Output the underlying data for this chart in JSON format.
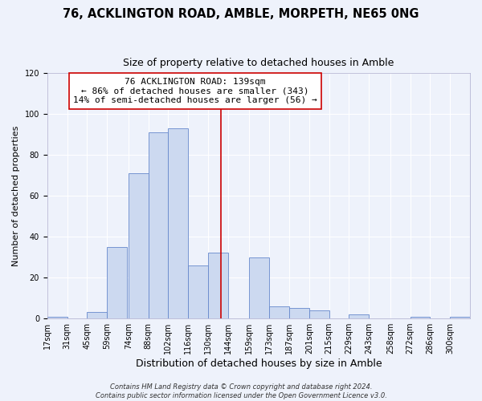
{
  "title": "76, ACKLINGTON ROAD, AMBLE, MORPETH, NE65 0NG",
  "subtitle": "Size of property relative to detached houses in Amble",
  "xlabel": "Distribution of detached houses by size in Amble",
  "ylabel": "Number of detached properties",
  "bar_labels": [
    "17sqm",
    "31sqm",
    "45sqm",
    "59sqm",
    "74sqm",
    "88sqm",
    "102sqm",
    "116sqm",
    "130sqm",
    "144sqm",
    "159sqm",
    "173sqm",
    "187sqm",
    "201sqm",
    "215sqm",
    "229sqm",
    "243sqm",
    "258sqm",
    "272sqm",
    "286sqm",
    "300sqm"
  ],
  "bar_values": [
    1,
    0,
    3,
    35,
    71,
    91,
    93,
    26,
    32,
    0,
    30,
    6,
    5,
    4,
    0,
    2,
    0,
    0,
    1,
    0,
    1
  ],
  "bar_edges": [
    17,
    31,
    45,
    59,
    74,
    88,
    102,
    116,
    130,
    144,
    159,
    173,
    187,
    201,
    215,
    229,
    243,
    258,
    272,
    286,
    300
  ],
  "bar_color": "#ccd9f0",
  "bar_edge_color": "#6688cc",
  "vline_x": 139,
  "vline_color": "#cc0000",
  "annotation_title": "76 ACKLINGTON ROAD: 139sqm",
  "annotation_line1": "← 86% of detached houses are smaller (343)",
  "annotation_line2": "14% of semi-detached houses are larger (56) →",
  "annotation_box_color": "#cc0000",
  "footer1": "Contains HM Land Registry data © Crown copyright and database right 2024.",
  "footer2": "Contains public sector information licensed under the Open Government Licence v3.0.",
  "ylim": [
    0,
    120
  ],
  "yticks": [
    0,
    20,
    40,
    60,
    80,
    100,
    120
  ],
  "title_fontsize": 10.5,
  "subtitle_fontsize": 9,
  "xlabel_fontsize": 9,
  "ylabel_fontsize": 8,
  "tick_fontsize": 7,
  "annotation_fontsize": 8,
  "footer_fontsize": 6,
  "bg_color": "#eef2fb"
}
